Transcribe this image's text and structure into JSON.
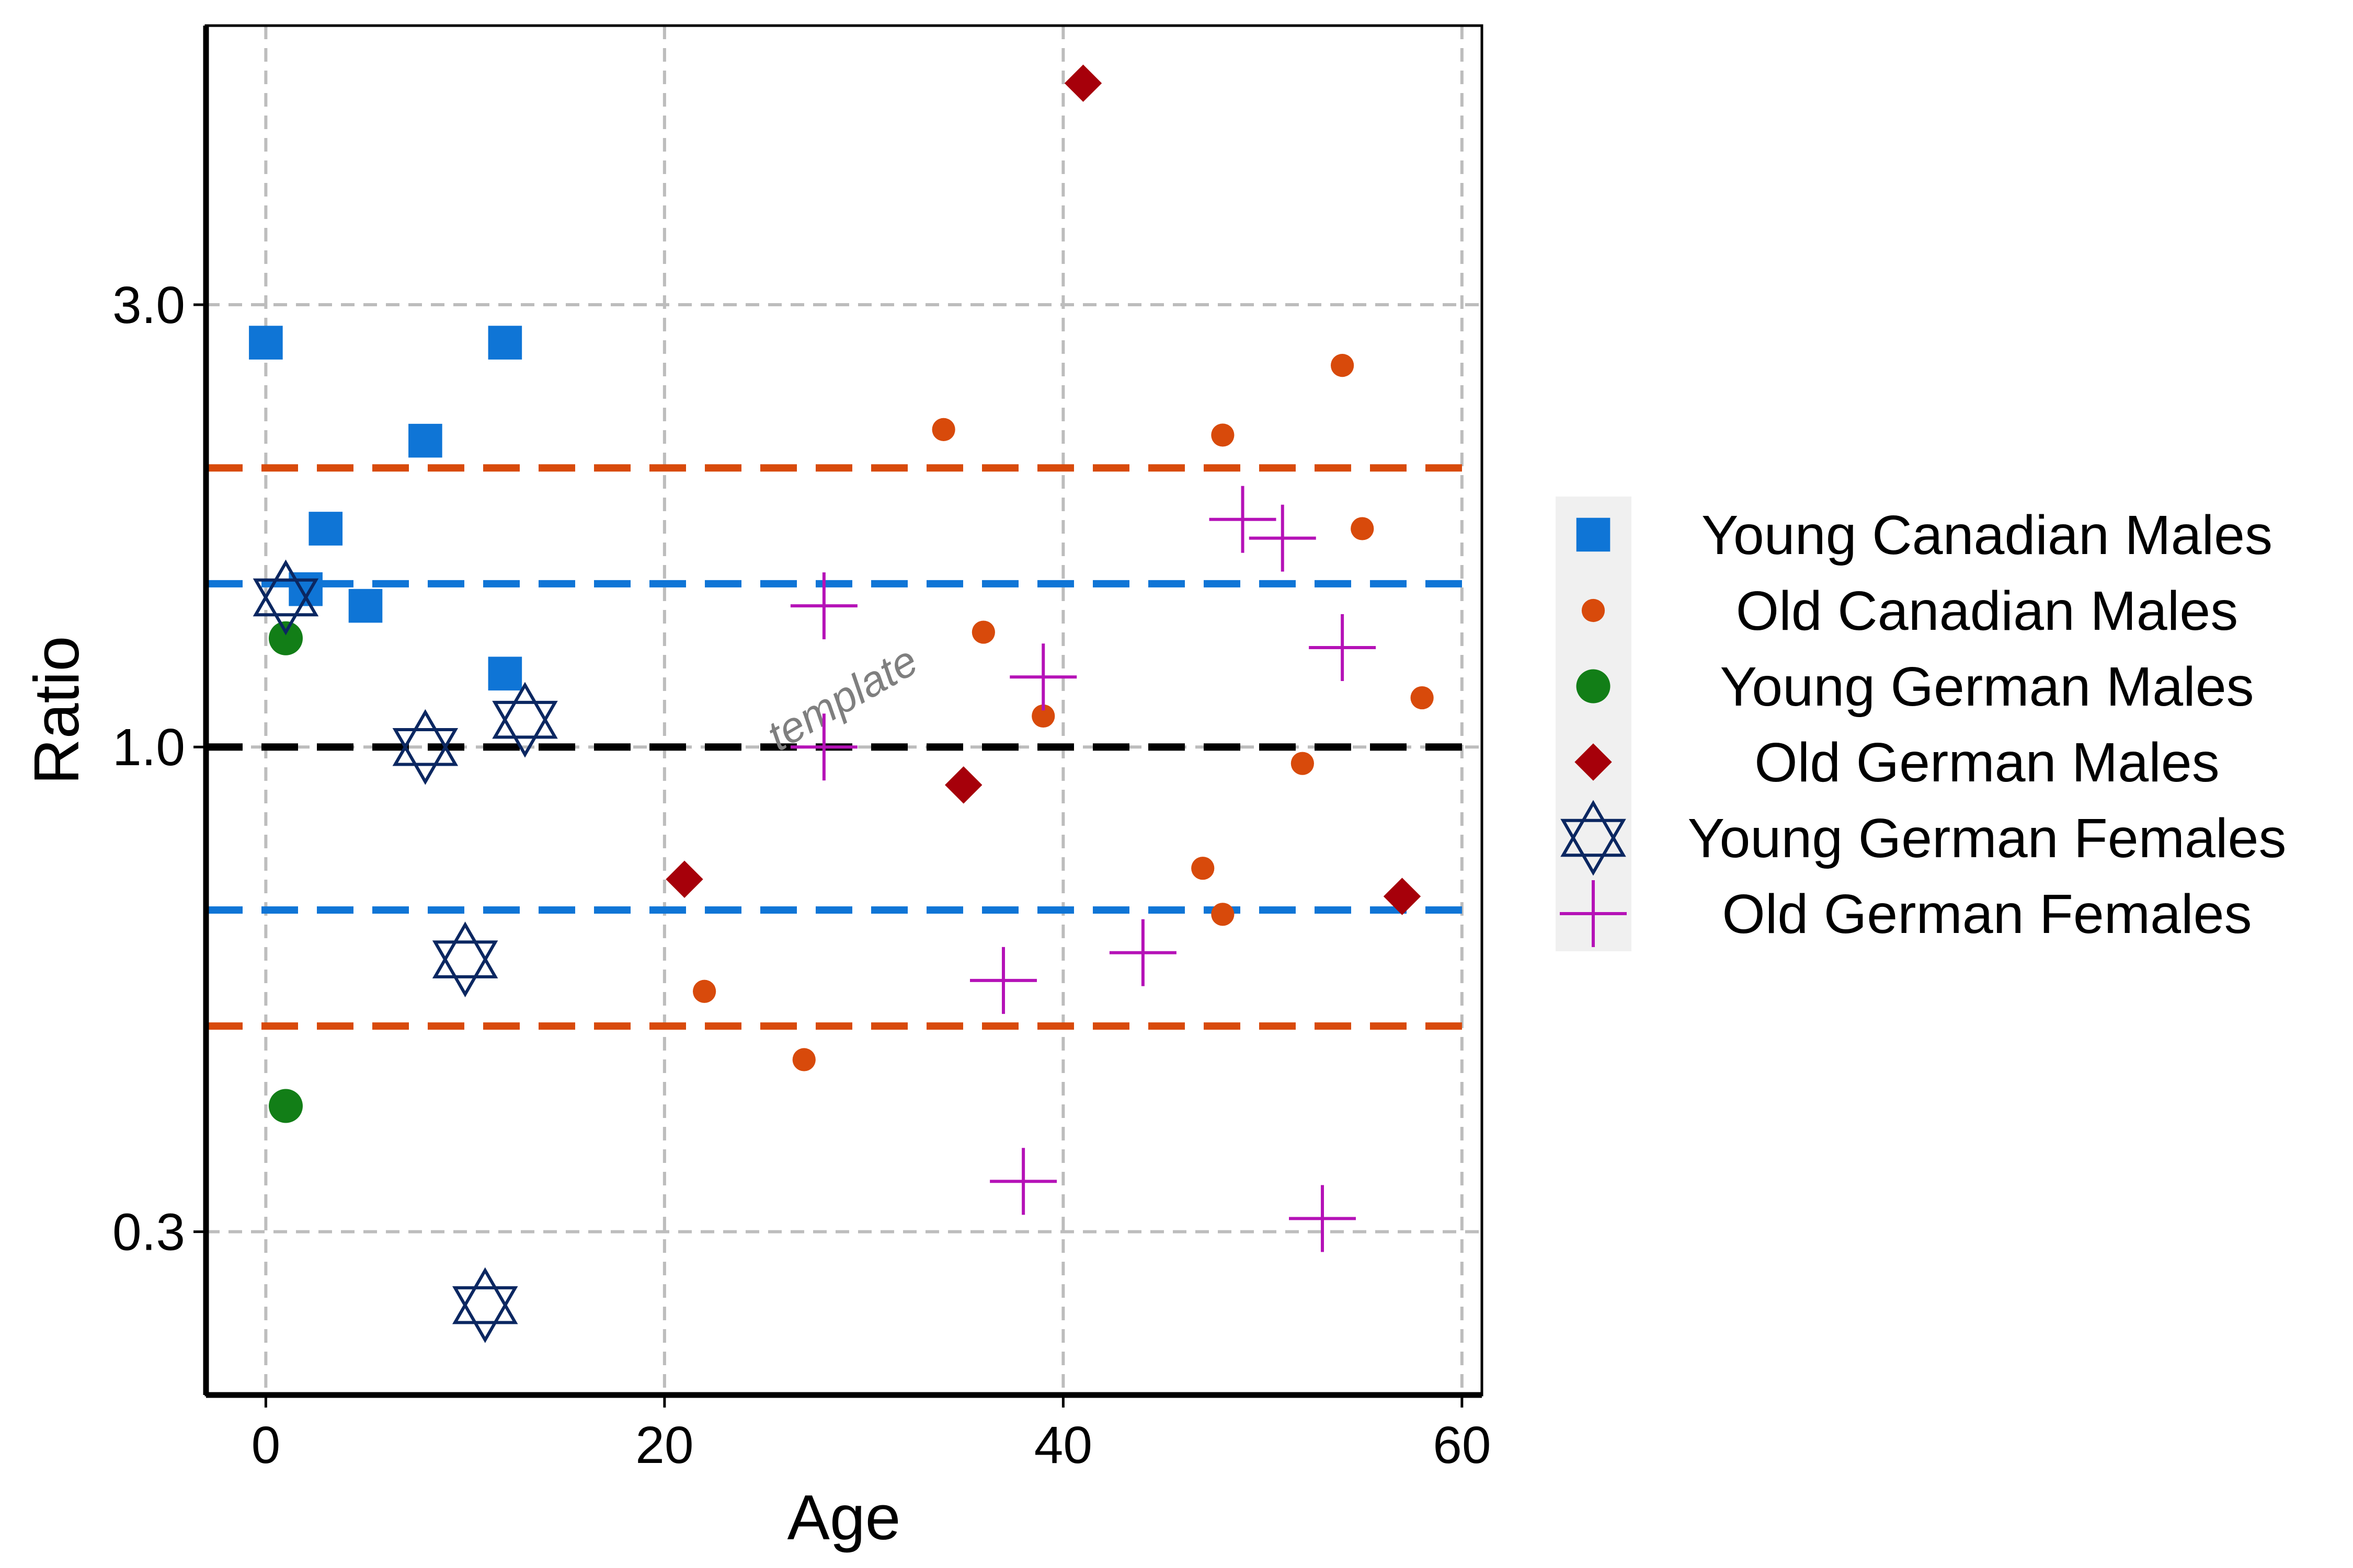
{
  "chart_data": {
    "type": "scatter",
    "xlabel": "Age",
    "ylabel": "Ratio",
    "y_scale": "log",
    "xlim": [
      -3,
      61
    ],
    "ylim": [
      0.2,
      6.0
    ],
    "x_ticks": [
      0,
      20,
      40,
      60
    ],
    "x_tick_labels": [
      "0",
      "20",
      "40",
      "60"
    ],
    "y_ticks": [
      0.3,
      1.0,
      3.0
    ],
    "y_tick_labels": [
      "0.3",
      "1.0",
      "3.0"
    ],
    "grid": true,
    "legend_position": "right",
    "watermark": "template",
    "reference_lines": [
      {
        "y": 2.0,
        "color": "#D84A0B"
      },
      {
        "y": 1.5,
        "color": "#0F75D6"
      },
      {
        "y": 1.0,
        "color": "#000000"
      },
      {
        "y": 0.667,
        "color": "#0F75D6"
      },
      {
        "y": 0.5,
        "color": "#D84A0B"
      }
    ],
    "series": [
      {
        "name": "Young Canadian Males",
        "marker": "square",
        "color": "#0F75D6",
        "points": [
          [
            0,
            2.73
          ],
          [
            2,
            1.48
          ],
          [
            3,
            1.72
          ],
          [
            5,
            1.42
          ],
          [
            8,
            2.14
          ],
          [
            12,
            2.73
          ],
          [
            12,
            1.2
          ]
        ]
      },
      {
        "name": "Old Canadian Males",
        "marker": "circle",
        "color": "#D84A0B",
        "points": [
          [
            22,
            0.545
          ],
          [
            27,
            0.46
          ],
          [
            34,
            2.2
          ],
          [
            36,
            1.33
          ],
          [
            39,
            1.08
          ],
          [
            47,
            0.74
          ],
          [
            48,
            2.17
          ],
          [
            48,
            0.66
          ],
          [
            52,
            0.96
          ],
          [
            54,
            2.58
          ],
          [
            55,
            1.72
          ],
          [
            58,
            1.13
          ]
        ]
      },
      {
        "name": "Young German Males",
        "marker": "circle",
        "color": "#127E17",
        "points": [
          [
            1,
            1.31
          ],
          [
            1,
            0.41
          ]
        ]
      },
      {
        "name": "Old German Males",
        "marker": "diamond",
        "color": "#A6000A",
        "points": [
          [
            21,
            0.72
          ],
          [
            35,
            0.91
          ],
          [
            41,
            5.2
          ],
          [
            57,
            0.69
          ]
        ]
      },
      {
        "name": "Young German Females",
        "marker": "star6",
        "color": "#0B2761",
        "points": [
          [
            1,
            1.45
          ],
          [
            8,
            1.0
          ],
          [
            10,
            0.59
          ],
          [
            11,
            0.25
          ],
          [
            13,
            1.07
          ]
        ]
      },
      {
        "name": "Old German Females",
        "marker": "plus",
        "color": "#B512B7",
        "points": [
          [
            28,
            1.42
          ],
          [
            28,
            1.0
          ],
          [
            37,
            0.56
          ],
          [
            38,
            0.34
          ],
          [
            39,
            1.19
          ],
          [
            44,
            0.6
          ],
          [
            49,
            1.76
          ],
          [
            51,
            1.68
          ],
          [
            53,
            0.31
          ],
          [
            54,
            1.28
          ]
        ]
      }
    ]
  }
}
